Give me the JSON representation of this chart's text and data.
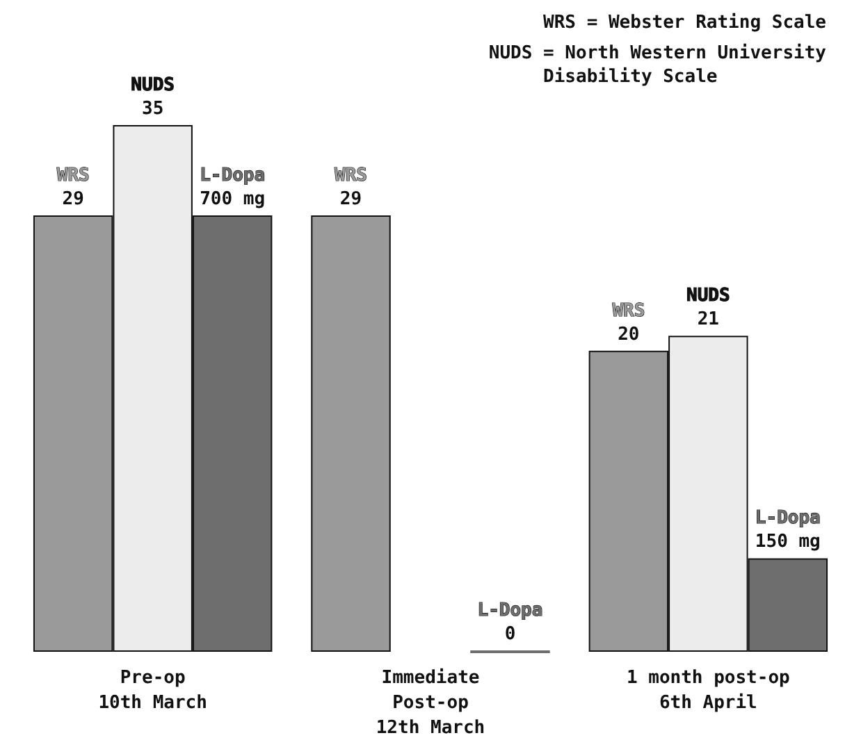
{
  "chart_data": {
    "type": "bar",
    "categories": [
      "Pre-op\n10th March",
      "Immediate\nPost-op\n12th March",
      "1 month post-op\n6th April"
    ],
    "series": [
      {
        "name": "WRS",
        "color": "#9a9a9a",
        "values": [
          29,
          29,
          20
        ],
        "value_labels": [
          "29",
          "29",
          "20"
        ]
      },
      {
        "name": "NUDS",
        "color": "#ececec",
        "values": [
          35,
          null,
          21
        ],
        "value_labels": [
          "35",
          null,
          "21"
        ]
      },
      {
        "name": "L-Dopa",
        "color": "#6e6e6e",
        "axis": "y2",
        "values": [
          700,
          0,
          150
        ],
        "value_labels": [
          "700 mg",
          "0",
          "150 mg"
        ]
      }
    ],
    "ylim": [
      0,
      35
    ],
    "y2lim": [
      0,
      845
    ],
    "annotations": [
      "WRS = Webster Rating Scale",
      "NUDS = North Western University\n     Disability Scale"
    ],
    "legend": false
  }
}
